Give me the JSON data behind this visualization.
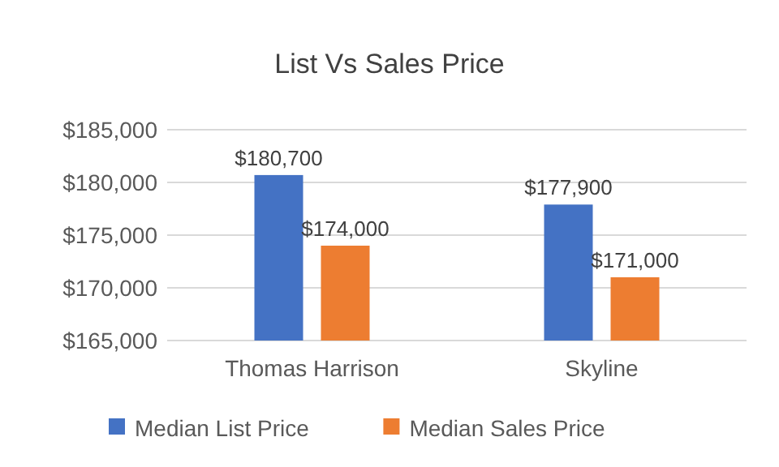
{
  "chart_data": {
    "type": "bar",
    "title": "List Vs Sales Price",
    "categories": [
      "Thomas Harrison",
      "Skyline"
    ],
    "series": [
      {
        "name": "Median List Price",
        "color": "#4472c4",
        "values": [
          180700,
          177900
        ],
        "value_labels": [
          "$180,700",
          "$177,900"
        ]
      },
      {
        "name": "Median Sales Price",
        "color": "#ed7d31",
        "values": [
          174000,
          171000
        ],
        "value_labels": [
          "$174,000",
          "$171,000"
        ]
      }
    ],
    "ylim": [
      165000,
      185000
    ],
    "yticks": [
      {
        "value": 165000,
        "label": "$165,000"
      },
      {
        "value": 170000,
        "label": "$170,000"
      },
      {
        "value": 175000,
        "label": "$175,000"
      },
      {
        "value": 180000,
        "label": "$180,000"
      },
      {
        "value": 185000,
        "label": "$185,000"
      }
    ],
    "grid": "y",
    "legend": "bottom"
  }
}
